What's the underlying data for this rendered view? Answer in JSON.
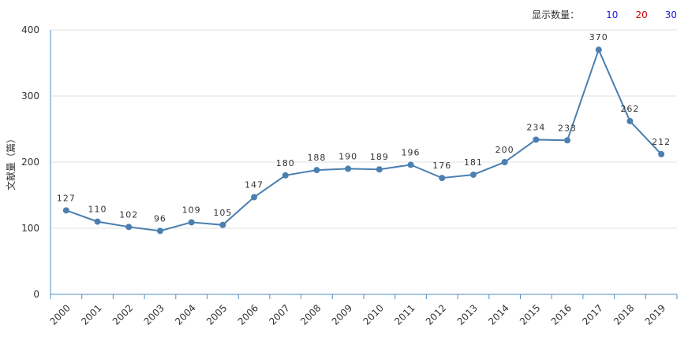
{
  "display_count": {
    "label": "显示数量：",
    "options": [
      {
        "text": "10",
        "color": "#1a1adb"
      },
      {
        "text": "20",
        "color": "#d40000"
      },
      {
        "text": "30",
        "color": "#1a1adb"
      }
    ]
  },
  "chart_data": {
    "type": "line",
    "title": "",
    "xlabel": "",
    "ylabel": "文献量（篇）",
    "ylim": [
      0,
      400
    ],
    "yticks": [
      0,
      100,
      200,
      300,
      400
    ],
    "grid": true,
    "categories": [
      "2000",
      "2001",
      "2002",
      "2003",
      "2004",
      "2005",
      "2006",
      "2007",
      "2008",
      "2009",
      "2010",
      "2011",
      "2012",
      "2013",
      "2014",
      "2015",
      "2016",
      "2017",
      "2018",
      "2019"
    ],
    "series": [
      {
        "name": "文献量",
        "color": "#4a7fb0",
        "values": [
          127,
          110,
          102,
          96,
          109,
          105,
          147,
          180,
          188,
          190,
          189,
          196,
          176,
          181,
          200,
          234,
          233,
          370,
          262,
          212
        ]
      }
    ]
  }
}
